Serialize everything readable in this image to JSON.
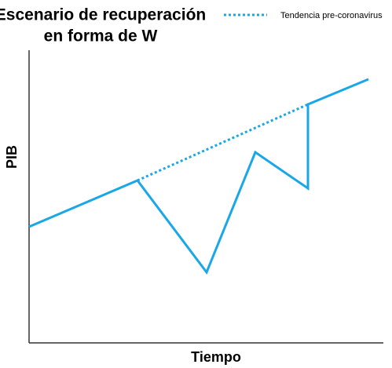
{
  "header": {
    "title_lines": [
      "Escenario de recuperación",
      "en forma de W"
    ]
  },
  "legend": {
    "label": "Tendencia pre-coronavirus"
  },
  "axes": {
    "x_label": "Tiempo",
    "y_label": "PIB"
  }
}
